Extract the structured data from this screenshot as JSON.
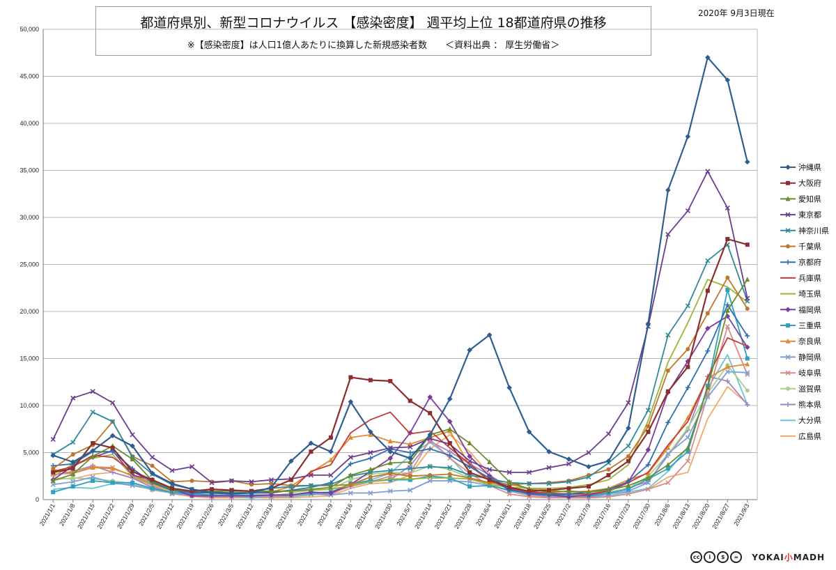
{
  "header": {
    "title": "都道府県別、新型コロナウイルス 【感染密度】 週平均上位 18都道府県の推移",
    "subtitle": "※【感染密度】は人口1億人あたりに換算した新規感染者数　　＜資料出典 ： 厚生労働省＞",
    "date": "2020年 9月3日現在"
  },
  "footer": {
    "license_icons": [
      "cc-icon",
      "by-icon",
      "nc-icon",
      "nd-icon"
    ],
    "logo_main": "YOKAI",
    "logo_mark": "小",
    "logo_tail": "MADH"
  },
  "chart_data": {
    "type": "line",
    "title": "都道府県別、新型コロナウイルス 【感染密度】 週平均上位 18都道府県の推移",
    "xlabel": "",
    "ylabel": "",
    "ylim": [
      0,
      50000
    ],
    "yticks": [
      "0",
      "5,000",
      "10,000",
      "15,000",
      "20,000",
      "25,000",
      "30,000",
      "35,000",
      "40,000",
      "45,000",
      "50,000"
    ],
    "grid": true,
    "legend_position": "right",
    "x": [
      "2021/1/1",
      "2021/1/8",
      "2021/1/15",
      "2021/1/22",
      "2021/1/29",
      "2021/2/5",
      "2021/2/12",
      "2021/2/19",
      "2021/2/26",
      "2021/3/5",
      "2021/3/12",
      "2021/3/19",
      "2021/3/26",
      "2021/4/2",
      "2021/4/9",
      "2021/4/16",
      "2021/4/23",
      "2021/4/30",
      "2021/5/7",
      "2021/5/14",
      "2021/5/21",
      "2021/5/28",
      "2021/6/4",
      "2021/6/11",
      "2021/6/18",
      "2021/6/25",
      "2021/7/2",
      "2021/7/9",
      "2021/7/16",
      "2021/7/23",
      "2021/7/30",
      "2021/8/6",
      "2021/8/13",
      "2021/8/20",
      "2021/8/27",
      "2021/9/3"
    ],
    "series": [
      {
        "name": "沖縄県",
        "color": "#2e5d8f",
        "marker": "diamond",
        "values": [
          4700,
          4000,
          5200,
          6800,
          5700,
          2800,
          1700,
          1100,
          700,
          700,
          700,
          1300,
          4100,
          6000,
          5100,
          10400,
          7200,
          5100,
          4400,
          6900,
          10700,
          15900,
          17500,
          11900,
          7200,
          5100,
          4300,
          3500,
          4100,
          7600,
          18700,
          32900,
          38600,
          47000,
          44600,
          35900
        ]
      },
      {
        "name": "大阪府",
        "color": "#8b2e2e",
        "marker": "square",
        "values": [
          2900,
          3300,
          6000,
          5500,
          3000,
          2100,
          1200,
          900,
          1100,
          1000,
          900,
          1200,
          2100,
          5100,
          6600,
          13000,
          12700,
          12600,
          10500,
          9200,
          6000,
          2900,
          2100,
          1300,
          900,
          1000,
          1200,
          1400,
          2600,
          4100,
          7200,
          11500,
          14100,
          22200,
          27700,
          27100
        ]
      },
      {
        "name": "愛知県",
        "color": "#6a8c2e",
        "marker": "triangle",
        "values": [
          2000,
          2700,
          4600,
          5700,
          4300,
          2000,
          1100,
          900,
          900,
          900,
          900,
          900,
          900,
          1100,
          1300,
          2600,
          3200,
          3900,
          4000,
          6900,
          7500,
          6000,
          4000,
          1900,
          1100,
          800,
          900,
          800,
          1000,
          1500,
          2300,
          3700,
          5500,
          11900,
          20100,
          23400
        ]
      },
      {
        "name": "東京都",
        "color": "#6a3d8f",
        "marker": "x",
        "values": [
          6400,
          10800,
          11500,
          10300,
          6900,
          4500,
          3100,
          3500,
          1800,
          2000,
          1900,
          2100,
          2200,
          2600,
          2600,
          4500,
          5000,
          5500,
          5600,
          6500,
          5900,
          4100,
          3200,
          2900,
          2900,
          3400,
          3800,
          5000,
          7000,
          10300,
          18400,
          28200,
          30700,
          34900,
          31000,
          21400
        ]
      },
      {
        "name": "神奈川県",
        "color": "#2e8a9b",
        "marker": "x",
        "values": [
          4800,
          6100,
          9300,
          8300,
          4500,
          2700,
          1600,
          1100,
          800,
          1000,
          900,
          1200,
          1400,
          1500,
          1600,
          2500,
          2900,
          3100,
          3300,
          3500,
          3400,
          2600,
          2200,
          1800,
          1700,
          1700,
          1900,
          2400,
          3900,
          5700,
          9500,
          17500,
          20600,
          25400,
          27100,
          21100
        ]
      },
      {
        "name": "千葉県",
        "color": "#c0762a",
        "marker": "circle",
        "values": [
          3300,
          4800,
          5800,
          8300,
          4600,
          3600,
          1900,
          2000,
          1900,
          2000,
          1600,
          1700,
          1500,
          1500,
          1500,
          1600,
          2400,
          2800,
          2500,
          2600,
          2700,
          2300,
          1800,
          1600,
          1700,
          1800,
          2000,
          2600,
          3200,
          4600,
          7800,
          13700,
          16000,
          19800,
          23600,
          20300
        ]
      },
      {
        "name": "京都府",
        "color": "#2e6fb0",
        "marker": "plus",
        "values": [
          3600,
          3800,
          5100,
          5100,
          3300,
          1800,
          1000,
          700,
          700,
          600,
          700,
          800,
          1000,
          1300,
          1800,
          3800,
          4400,
          5400,
          5000,
          5400,
          4700,
          3500,
          2300,
          1000,
          700,
          500,
          600,
          800,
          1100,
          1900,
          3700,
          8200,
          11900,
          15800,
          20700,
          17400
        ]
      },
      {
        "name": "兵庫県",
        "color": "#c23b3b",
        "marker": "none",
        "values": [
          3000,
          3500,
          4700,
          4500,
          3000,
          1900,
          1000,
          800,
          800,
          700,
          700,
          700,
          1000,
          3000,
          3700,
          7100,
          8500,
          9300,
          7000,
          7300,
          5500,
          3800,
          2000,
          1200,
          800,
          700,
          600,
          600,
          900,
          1800,
          2900,
          5800,
          8300,
          13000,
          17200,
          16300
        ]
      },
      {
        "name": "埼玉県",
        "color": "#9bb53a",
        "marker": "none",
        "values": [
          2400,
          3800,
          4400,
          4800,
          2500,
          1700,
          900,
          800,
          800,
          700,
          800,
          900,
          900,
          1000,
          1100,
          1500,
          1900,
          2200,
          2200,
          2300,
          2300,
          2200,
          1600,
          1300,
          1200,
          1200,
          1300,
          1600,
          2100,
          3700,
          8400,
          14600,
          18800,
          23400,
          22600,
          21000
        ]
      },
      {
        "name": "福岡県",
        "color": "#7a3d9f",
        "marker": "diamond",
        "values": [
          2100,
          3600,
          4500,
          5200,
          2600,
          2100,
          1100,
          400,
          400,
          400,
          400,
          500,
          500,
          800,
          700,
          1600,
          3000,
          4400,
          7100,
          10900,
          8300,
          4600,
          2500,
          1100,
          600,
          500,
          300,
          500,
          900,
          1900,
          5300,
          11400,
          14700,
          18200,
          19500,
          16200
        ]
      },
      {
        "name": "三重県",
        "color": "#2ea0c0",
        "marker": "square",
        "values": [
          800,
          1400,
          2000,
          1800,
          1800,
          1200,
          800,
          600,
          500,
          500,
          500,
          500,
          500,
          700,
          800,
          1700,
          2000,
          2100,
          2100,
          2500,
          2300,
          1400,
          1500,
          1000,
          700,
          600,
          400,
          400,
          700,
          1100,
          2200,
          3300,
          5100,
          12100,
          22300,
          15000
        ]
      },
      {
        "name": "奈良県",
        "color": "#e08a2e",
        "marker": "triangle",
        "values": [
          3200,
          2800,
          3400,
          3300,
          2600,
          1800,
          1100,
          800,
          800,
          700,
          700,
          800,
          1400,
          2900,
          4200,
          6600,
          6900,
          6200,
          5900,
          6600,
          7300,
          3600,
          2000,
          1600,
          1200,
          1000,
          800,
          900,
          1200,
          2100,
          2800,
          5500,
          8700,
          12900,
          14100,
          14400
        ]
      },
      {
        "name": "静岡県",
        "color": "#7f9fd4",
        "marker": "x",
        "values": [
          1600,
          1900,
          2400,
          1800,
          1500,
          1100,
          700,
          500,
          400,
          400,
          300,
          400,
          500,
          600,
          500,
          700,
          700,
          900,
          1000,
          2000,
          2000,
          1900,
          1500,
          1000,
          600,
          500,
          400,
          400,
          600,
          900,
          1800,
          4900,
          6600,
          10900,
          13600,
          13500
        ]
      },
      {
        "name": "岐阜県",
        "color": "#d98a8a",
        "marker": "x",
        "values": [
          2700,
          2800,
          3500,
          3400,
          2500,
          1500,
          600,
          400,
          300,
          300,
          300,
          300,
          400,
          600,
          500,
          1600,
          1900,
          2500,
          2800,
          6400,
          4400,
          2800,
          1500,
          600,
          300,
          200,
          200,
          200,
          300,
          600,
          1100,
          1800,
          4100,
          11100,
          18400,
          13300
        ]
      },
      {
        "name": "滋賀県",
        "color": "#a8d08d",
        "marker": "circle",
        "values": [
          2100,
          2300,
          2200,
          2000,
          1700,
          1000,
          700,
          500,
          400,
          400,
          400,
          400,
          700,
          1000,
          1100,
          2100,
          2700,
          2900,
          2800,
          3600,
          3200,
          2300,
          1800,
          1200,
          800,
          700,
          500,
          500,
          800,
          1200,
          2500,
          4800,
          7600,
          11300,
          14300,
          11600
        ]
      },
      {
        "name": "熊本県",
        "color": "#9f86c0",
        "marker": "plus",
        "values": [
          2600,
          3000,
          3600,
          2900,
          2300,
          1300,
          700,
          400,
          300,
          300,
          300,
          300,
          400,
          700,
          700,
          1400,
          1900,
          2100,
          3600,
          6200,
          5100,
          3800,
          2600,
          1300,
          600,
          300,
          200,
          300,
          600,
          1300,
          1900,
          4700,
          7400,
          13100,
          12600,
          10100
        ]
      },
      {
        "name": "大分県",
        "color": "#6dc1d6",
        "marker": "none",
        "values": [
          1100,
          1300,
          1200,
          1700,
          1600,
          1200,
          800,
          600,
          400,
          300,
          200,
          300,
          300,
          500,
          700,
          1600,
          2100,
          2800,
          4700,
          6100,
          4500,
          2200,
          1600,
          900,
          500,
          400,
          200,
          300,
          400,
          800,
          1200,
          3000,
          5600,
          11800,
          15400,
          10100
        ]
      },
      {
        "name": "広島県",
        "color": "#f2a868",
        "marker": "none",
        "values": [
          2300,
          2200,
          2700,
          2900,
          2300,
          1600,
          700,
          300,
          200,
          200,
          200,
          200,
          200,
          300,
          400,
          1200,
          1700,
          1800,
          2600,
          5400,
          6900,
          5100,
          2700,
          900,
          400,
          300,
          200,
          200,
          300,
          600,
          1100,
          2400,
          2900,
          8600,
          12000,
          10200
        ]
      }
    ]
  }
}
